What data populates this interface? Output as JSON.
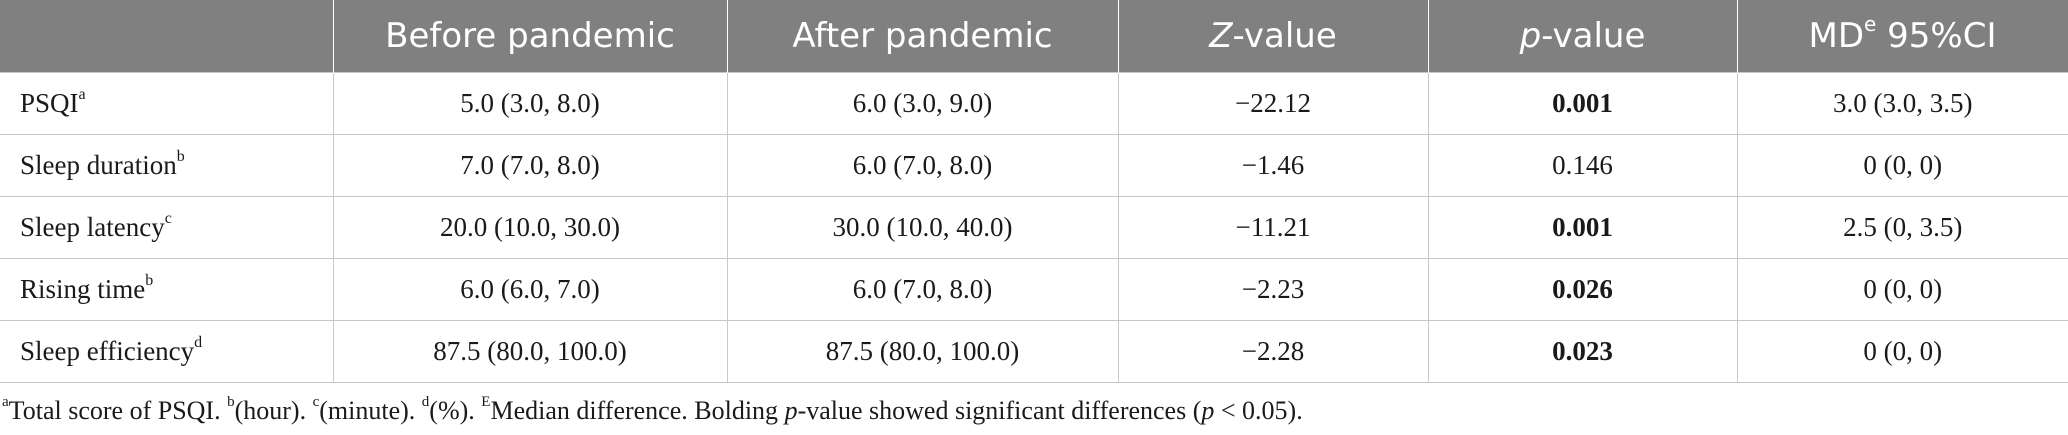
{
  "header": {
    "c0": "",
    "c1": "Before pandemic",
    "c2": "After pandemic",
    "c3_italic": "Z",
    "c3_rest": "-value",
    "c4_italic": "p",
    "c4_rest": "-value",
    "c5_main": "MD",
    "c5_sup": "e",
    "c5_rest": " 95%CI"
  },
  "rows": [
    {
      "label": "PSQI",
      "sup": "a",
      "before": "5.0 (3.0, 8.0)",
      "after": "6.0 (3.0, 9.0)",
      "z": "−22.12",
      "p": "0.001",
      "md": "3.0 (3.0, 3.5)"
    },
    {
      "label": "Sleep duration",
      "sup": "b",
      "before": "7.0 (7.0, 8.0)",
      "after": "6.0 (7.0, 8.0)",
      "z": "−1.46",
      "p": "0.146",
      "md": "0 (0, 0)"
    },
    {
      "label": "Sleep latency",
      "sup": "c",
      "before": "20.0 (10.0, 30.0)",
      "after": "30.0 (10.0, 40.0)",
      "z": "−11.21",
      "p": "0.001",
      "md": "2.5 (0, 3.5)"
    },
    {
      "label": "Rising time",
      "sup": "b",
      "before": "6.0 (6.0, 7.0)",
      "after": "6.0 (7.0, 8.0)",
      "z": "−2.23",
      "p": "0.026",
      "md": "0 (0, 0)"
    },
    {
      "label": "Sleep efficiency",
      "sup": "d",
      "before": "87.5 (80.0, 100.0)",
      "after": "87.5 (80.0, 100.0)",
      "z": "−2.28",
      "p": "0.023",
      "md": "0 (0, 0)"
    }
  ],
  "footnote": {
    "a_sup": "a",
    "a_text": "Total score of PSQI. ",
    "b_sup": "b",
    "b_text": "(hour). ",
    "c_sup": "c",
    "c_text": "(minute). ",
    "d_sup": "d",
    "d_text": "(%). ",
    "e_sup": "E",
    "e_text": "Median difference. Bolding ",
    "p_italic": "p",
    "tail1": "-value showed significant differences (",
    "p_italic2": "p",
    "tail2": " < 0.05)."
  }
}
